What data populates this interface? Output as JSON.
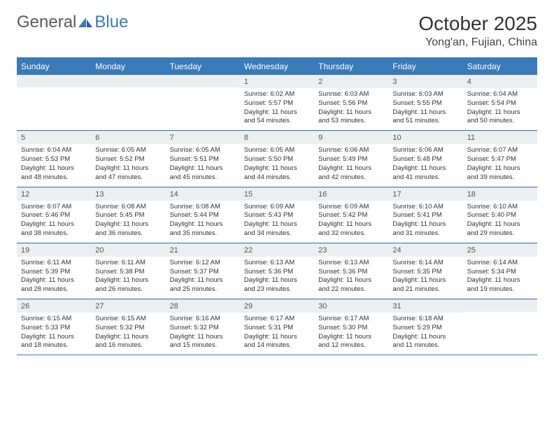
{
  "brand": {
    "general": "General",
    "blue": "Blue"
  },
  "title": "October 2025",
  "location": "Yong'an, Fujian, China",
  "colors": {
    "accent": "#3a7ab8",
    "header_bg": "#3a7ab8",
    "daynum_bg": "#eceff1",
    "text": "#333333"
  },
  "weekdays": [
    "Sunday",
    "Monday",
    "Tuesday",
    "Wednesday",
    "Thursday",
    "Friday",
    "Saturday"
  ],
  "weeks": [
    [
      null,
      null,
      null,
      {
        "n": "1",
        "sr": "6:02 AM",
        "ss": "5:57 PM",
        "dl": "11 hours and 54 minutes."
      },
      {
        "n": "2",
        "sr": "6:03 AM",
        "ss": "5:56 PM",
        "dl": "11 hours and 53 minutes."
      },
      {
        "n": "3",
        "sr": "6:03 AM",
        "ss": "5:55 PM",
        "dl": "11 hours and 51 minutes."
      },
      {
        "n": "4",
        "sr": "6:04 AM",
        "ss": "5:54 PM",
        "dl": "11 hours and 50 minutes."
      }
    ],
    [
      {
        "n": "5",
        "sr": "6:04 AM",
        "ss": "5:53 PM",
        "dl": "11 hours and 48 minutes."
      },
      {
        "n": "6",
        "sr": "6:05 AM",
        "ss": "5:52 PM",
        "dl": "11 hours and 47 minutes."
      },
      {
        "n": "7",
        "sr": "6:05 AM",
        "ss": "5:51 PM",
        "dl": "11 hours and 45 minutes."
      },
      {
        "n": "8",
        "sr": "6:05 AM",
        "ss": "5:50 PM",
        "dl": "11 hours and 44 minutes."
      },
      {
        "n": "9",
        "sr": "6:06 AM",
        "ss": "5:49 PM",
        "dl": "11 hours and 42 minutes."
      },
      {
        "n": "10",
        "sr": "6:06 AM",
        "ss": "5:48 PM",
        "dl": "11 hours and 41 minutes."
      },
      {
        "n": "11",
        "sr": "6:07 AM",
        "ss": "5:47 PM",
        "dl": "11 hours and 39 minutes."
      }
    ],
    [
      {
        "n": "12",
        "sr": "6:07 AM",
        "ss": "5:46 PM",
        "dl": "11 hours and 38 minutes."
      },
      {
        "n": "13",
        "sr": "6:08 AM",
        "ss": "5:45 PM",
        "dl": "11 hours and 36 minutes."
      },
      {
        "n": "14",
        "sr": "6:08 AM",
        "ss": "5:44 PM",
        "dl": "11 hours and 35 minutes."
      },
      {
        "n": "15",
        "sr": "6:09 AM",
        "ss": "5:43 PM",
        "dl": "11 hours and 34 minutes."
      },
      {
        "n": "16",
        "sr": "6:09 AM",
        "ss": "5:42 PM",
        "dl": "11 hours and 32 minutes."
      },
      {
        "n": "17",
        "sr": "6:10 AM",
        "ss": "5:41 PM",
        "dl": "11 hours and 31 minutes."
      },
      {
        "n": "18",
        "sr": "6:10 AM",
        "ss": "5:40 PM",
        "dl": "11 hours and 29 minutes."
      }
    ],
    [
      {
        "n": "19",
        "sr": "6:11 AM",
        "ss": "5:39 PM",
        "dl": "11 hours and 28 minutes."
      },
      {
        "n": "20",
        "sr": "6:11 AM",
        "ss": "5:38 PM",
        "dl": "11 hours and 26 minutes."
      },
      {
        "n": "21",
        "sr": "6:12 AM",
        "ss": "5:37 PM",
        "dl": "11 hours and 25 minutes."
      },
      {
        "n": "22",
        "sr": "6:13 AM",
        "ss": "5:36 PM",
        "dl": "11 hours and 23 minutes."
      },
      {
        "n": "23",
        "sr": "6:13 AM",
        "ss": "5:36 PM",
        "dl": "11 hours and 22 minutes."
      },
      {
        "n": "24",
        "sr": "6:14 AM",
        "ss": "5:35 PM",
        "dl": "11 hours and 21 minutes."
      },
      {
        "n": "25",
        "sr": "6:14 AM",
        "ss": "5:34 PM",
        "dl": "11 hours and 19 minutes."
      }
    ],
    [
      {
        "n": "26",
        "sr": "6:15 AM",
        "ss": "5:33 PM",
        "dl": "11 hours and 18 minutes."
      },
      {
        "n": "27",
        "sr": "6:15 AM",
        "ss": "5:32 PM",
        "dl": "11 hours and 16 minutes."
      },
      {
        "n": "28",
        "sr": "6:16 AM",
        "ss": "5:32 PM",
        "dl": "11 hours and 15 minutes."
      },
      {
        "n": "29",
        "sr": "6:17 AM",
        "ss": "5:31 PM",
        "dl": "11 hours and 14 minutes."
      },
      {
        "n": "30",
        "sr": "6:17 AM",
        "ss": "5:30 PM",
        "dl": "11 hours and 12 minutes."
      },
      {
        "n": "31",
        "sr": "6:18 AM",
        "ss": "5:29 PM",
        "dl": "11 hours and 11 minutes."
      },
      null
    ]
  ],
  "labels": {
    "sunrise": "Sunrise:",
    "sunset": "Sunset:",
    "daylight": "Daylight:"
  }
}
